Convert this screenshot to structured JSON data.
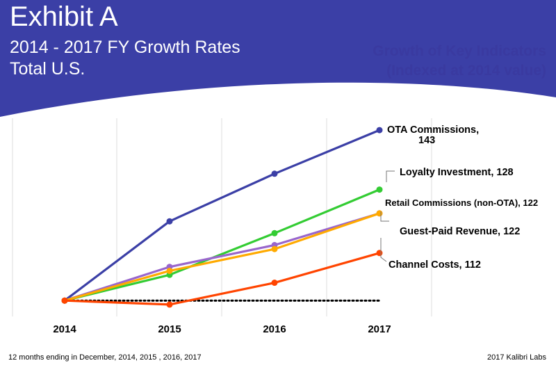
{
  "header": {
    "exhibit_title": "Exhibit A",
    "line1": "2014 - 2017 FY Growth Rates",
    "line2": "Total U.S.",
    "background_color": "#3b3fa6"
  },
  "footer": {
    "note": "12 months ending in December, 2014, 2015 , 2016, 2017",
    "credit": "2017 Kalibri Labs"
  },
  "chart_data": {
    "type": "line",
    "title": "Growth of Key Indicators",
    "subtitle": "(Indexed at 2014 value)",
    "x": [
      "2014",
      "2015",
      "2016",
      "2017"
    ],
    "ylim": [
      96,
      146
    ],
    "grid": "vertical",
    "baseline": {
      "value": 100,
      "style": "dotted",
      "color": "#000000"
    },
    "series": [
      {
        "name": "OTA Commissions",
        "label_line1": "OTA Commissions,",
        "label_line2": "143",
        "values": [
          100,
          120,
          132,
          143
        ],
        "color": "#3b3fa6"
      },
      {
        "name": "Loyalty Investment",
        "label_line1": "Loyalty Investment, 128",
        "label_line2": "",
        "values": [
          100,
          106.5,
          117,
          128
        ],
        "color": "#33cc33"
      },
      {
        "name": "Retail Commissions (non-OTA)",
        "label_line1": "Retail Commissions (non-OTA), 122",
        "label_line2": "",
        "values": [
          100,
          108.5,
          114,
          122
        ],
        "color": "#9966cc"
      },
      {
        "name": "Guest-Paid Revenue",
        "label_line1": "Guest-Paid Revenue, 122",
        "label_line2": "",
        "values": [
          100,
          107.5,
          113,
          122
        ],
        "color": "#ffaa00"
      },
      {
        "name": "Channel Costs",
        "label_line1": "Channel Costs, 112",
        "label_line2": "",
        "values": [
          100,
          99,
          104.5,
          112
        ],
        "color": "#ff4400"
      }
    ]
  }
}
